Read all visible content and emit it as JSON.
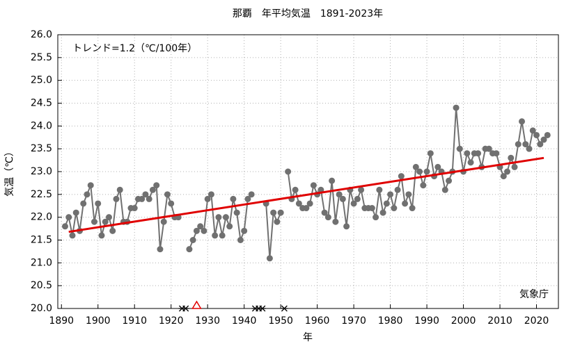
{
  "chart_data": {
    "type": "line",
    "title": "那覇　年平均気温　1891-2023年",
    "x_label": "年",
    "y_label": "気温（℃）",
    "annotation": "トレンド=1.2（℃/100年）",
    "source": "気象庁",
    "x": [
      1891,
      1892,
      1893,
      1894,
      1895,
      1896,
      1897,
      1898,
      1899,
      1900,
      1901,
      1902,
      1903,
      1904,
      1905,
      1906,
      1907,
      1908,
      1909,
      1910,
      1911,
      1912,
      1913,
      1914,
      1915,
      1916,
      1917,
      1918,
      1919,
      1920,
      1921,
      1922,
      1923,
      1924,
      1925,
      1926,
      1927,
      1928,
      1929,
      1930,
      1931,
      1932,
      1933,
      1934,
      1935,
      1936,
      1937,
      1938,
      1939,
      1940,
      1941,
      1942,
      1943,
      1944,
      1945,
      1946,
      1947,
      1948,
      1949,
      1950,
      1951,
      1952,
      1953,
      1954,
      1955,
      1956,
      1957,
      1958,
      1959,
      1960,
      1961,
      1962,
      1963,
      1964,
      1965,
      1966,
      1967,
      1968,
      1969,
      1970,
      1971,
      1972,
      1973,
      1974,
      1975,
      1976,
      1977,
      1978,
      1979,
      1980,
      1981,
      1982,
      1983,
      1984,
      1985,
      1986,
      1987,
      1988,
      1989,
      1990,
      1991,
      1992,
      1993,
      1994,
      1995,
      1996,
      1997,
      1998,
      1999,
      2000,
      2001,
      2002,
      2003,
      2004,
      2005,
      2006,
      2007,
      2008,
      2009,
      2010,
      2011,
      2012,
      2013,
      2014,
      2015,
      2016,
      2017,
      2018,
      2019,
      2020,
      2021,
      2022,
      2023
    ],
    "series": [
      {
        "color": "#707070",
        "values": [
          21.8,
          22.0,
          21.6,
          22.1,
          21.7,
          22.3,
          22.5,
          22.7,
          21.9,
          22.3,
          21.6,
          21.9,
          22.0,
          21.7,
          22.4,
          22.6,
          21.9,
          21.9,
          22.2,
          22.2,
          22.4,
          22.4,
          22.5,
          22.4,
          22.6,
          22.7,
          21.3,
          21.9,
          22.5,
          22.3,
          22.0,
          22.0,
          null,
          null,
          21.3,
          21.5,
          21.7,
          21.8,
          21.7,
          22.4,
          22.5,
          21.6,
          22.0,
          21.6,
          22.0,
          21.8,
          22.4,
          22.1,
          21.5,
          21.7,
          22.4,
          22.5,
          null,
          null,
          null,
          22.3,
          21.1,
          22.1,
          21.9,
          22.1,
          null,
          23.0,
          22.4,
          22.6,
          22.3,
          22.2,
          22.2,
          22.3,
          22.7,
          22.5,
          22.6,
          22.1,
          22.0,
          22.8,
          21.9,
          22.5,
          22.4,
          21.8,
          22.6,
          22.3,
          22.4,
          22.6,
          22.2,
          22.2,
          22.2,
          22.0,
          22.6,
          22.1,
          22.3,
          22.5,
          22.2,
          22.6,
          22.9,
          22.3,
          22.5,
          22.2,
          23.1,
          23.0,
          22.7,
          23.0,
          23.4,
          22.9,
          23.1,
          23.0,
          22.6,
          22.8,
          23.0,
          24.4,
          23.5,
          23.0,
          23.4,
          23.2,
          23.4,
          23.4,
          23.1,
          23.5,
          23.5,
          23.4,
          23.4,
          23.1,
          22.9,
          23.0,
          23.3,
          23.1,
          23.6,
          24.1,
          23.6,
          23.5,
          23.9,
          23.8,
          23.6,
          23.7,
          23.8
        ]
      }
    ],
    "trend": {
      "color": "#e00000",
      "x": [
        1892,
        2022
      ],
      "values": [
        21.68,
        23.3
      ]
    },
    "missing_years": [
      1923,
      1924,
      1943,
      1944,
      1945,
      1951
    ],
    "uncertain_years": [
      1927
    ],
    "xlim": [
      1889,
      2026
    ],
    "ylim": [
      20.0,
      26.0
    ],
    "xticks": [
      1890,
      1900,
      1910,
      1920,
      1930,
      1940,
      1950,
      1960,
      1970,
      1980,
      1990,
      2000,
      2010,
      2020
    ],
    "yticks": [
      {
        "value": 20.0,
        "label": "20.0"
      },
      {
        "value": 20.5,
        "label": "20.5"
      },
      {
        "value": 21.0,
        "label": "21.0"
      },
      {
        "value": 21.5,
        "label": "21.5"
      },
      {
        "value": 22.0,
        "label": "22.0"
      },
      {
        "value": 22.5,
        "label": "22.5"
      },
      {
        "value": 23.0,
        "label": "23.0"
      },
      {
        "value": 23.5,
        "label": "23.5"
      },
      {
        "value": 24.0,
        "label": "24.0"
      },
      {
        "value": 24.5,
        "label": "24.5"
      },
      {
        "value": 25.0,
        "label": "25.0"
      },
      {
        "value": 25.5,
        "label": "25.5"
      },
      {
        "value": 26.0,
        "label": "26.0"
      }
    ],
    "grid": true
  }
}
